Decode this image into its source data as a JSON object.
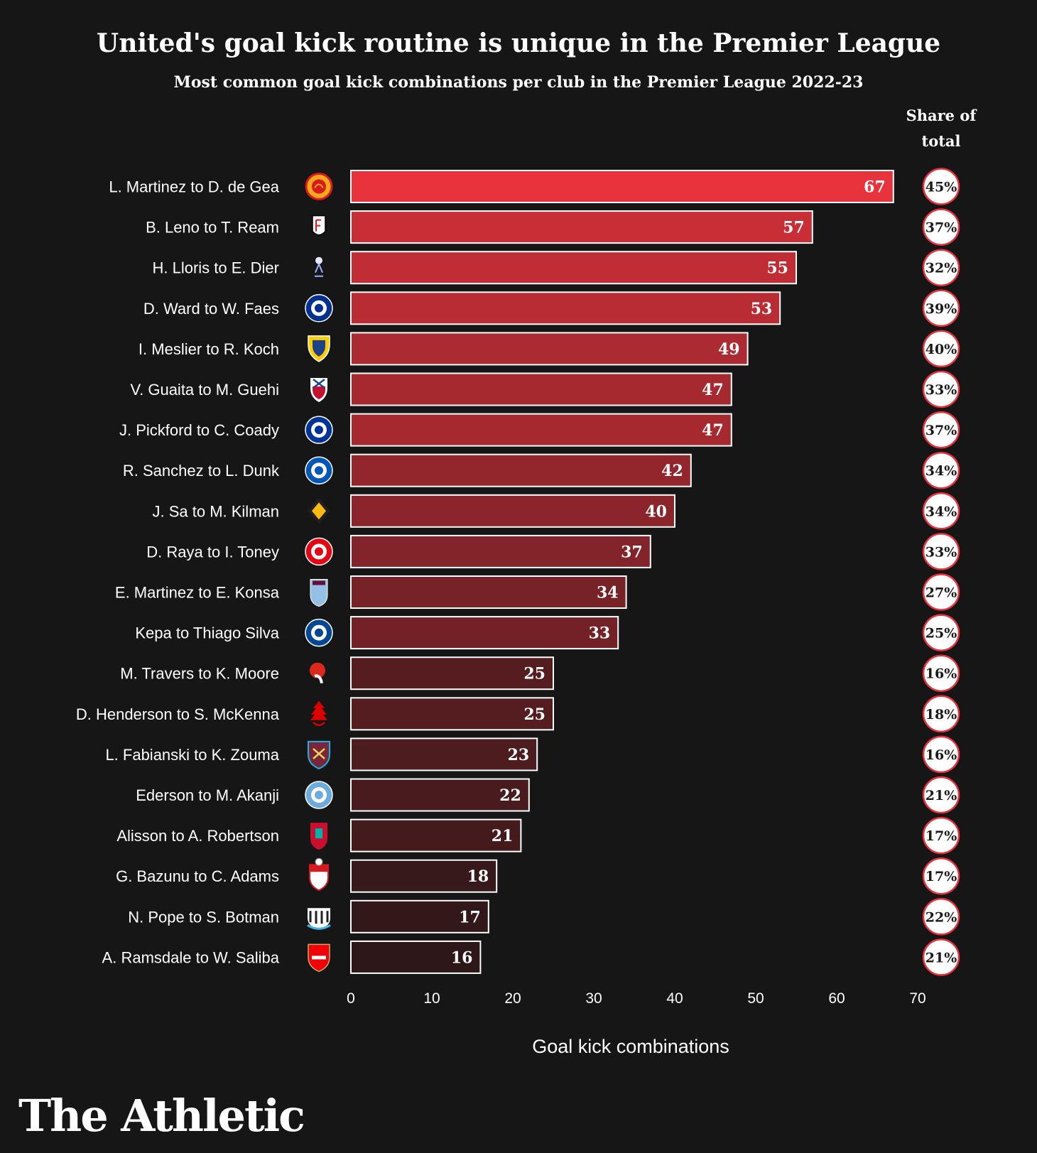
{
  "chart_data": {
    "type": "bar",
    "orientation": "horizontal",
    "title": "United's goal kick routine is unique in the Premier League",
    "subtitle": "Most common goal kick combinations per club in the Premier League 2022-23",
    "share_header": [
      "Share of",
      "total"
    ],
    "xlabel": "Goal kick combinations",
    "ylabel": "",
    "xlim": [
      0,
      70
    ],
    "xticks": [
      0,
      10,
      20,
      30,
      40,
      50,
      60,
      70
    ],
    "grid": false,
    "legend": "none",
    "categories": [
      "L. Martinez to D. de Gea",
      "B. Leno to T. Ream",
      "H. Lloris to E. Dier",
      "D. Ward to W. Faes",
      "I. Meslier to R. Koch",
      "V. Guaita to M. Guehi",
      "J. Pickford to C. Coady",
      "R. Sanchez to L. Dunk",
      "J. Sa to M. Kilman",
      "D. Raya to I. Toney",
      "E. Martinez to E. Konsa",
      "Kepa to Thiago Silva",
      "M. Travers to K. Moore",
      "D. Henderson to S. McKenna",
      "L. Fabianski to K. Zouma",
      "Ederson to M. Akanji",
      "Alisson to A. Robertson",
      "G. Bazunu to C. Adams",
      "N. Pope to S. Botman",
      "A. Ramsdale to W. Saliba"
    ],
    "values": [
      67,
      57,
      55,
      53,
      49,
      47,
      47,
      42,
      40,
      37,
      34,
      33,
      25,
      25,
      23,
      22,
      21,
      18,
      17,
      16
    ],
    "share_of_total": [
      "45%",
      "37%",
      "32%",
      "39%",
      "40%",
      "33%",
      "37%",
      "34%",
      "34%",
      "33%",
      "27%",
      "25%",
      "16%",
      "18%",
      "16%",
      "21%",
      "17%",
      "17%",
      "22%",
      "21%"
    ],
    "club_badges": [
      {
        "icon": "man-utd-badge-icon",
        "color": "#d71920"
      },
      {
        "icon": "fulham-badge-icon",
        "color": "#ffffff"
      },
      {
        "icon": "tottenham-badge-icon",
        "color": "#132257"
      },
      {
        "icon": "leicester-badge-icon",
        "color": "#003090"
      },
      {
        "icon": "leeds-badge-icon",
        "color": "#ffcd00"
      },
      {
        "icon": "crystal-palace-badge-icon",
        "color": "#1b458f"
      },
      {
        "icon": "everton-badge-icon",
        "color": "#003399"
      },
      {
        "icon": "brighton-badge-icon",
        "color": "#0057b8"
      },
      {
        "icon": "wolves-badge-icon",
        "color": "#fdb913"
      },
      {
        "icon": "brentford-badge-icon",
        "color": "#e30613"
      },
      {
        "icon": "aston-villa-badge-icon",
        "color": "#95bfe5"
      },
      {
        "icon": "chelsea-badge-icon",
        "color": "#034694"
      },
      {
        "icon": "bournemouth-badge-icon",
        "color": "#da291c"
      },
      {
        "icon": "nottingham-forest-badge-icon",
        "color": "#dd0000"
      },
      {
        "icon": "west-ham-badge-icon",
        "color": "#7a263a"
      },
      {
        "icon": "man-city-badge-icon",
        "color": "#6cabdd"
      },
      {
        "icon": "liverpool-badge-icon",
        "color": "#c8102e"
      },
      {
        "icon": "southampton-badge-icon",
        "color": "#d71920"
      },
      {
        "icon": "newcastle-badge-icon",
        "color": "#241f20"
      },
      {
        "icon": "arsenal-badge-icon",
        "color": "#ef0107"
      }
    ],
    "colors": {
      "background": "#161616",
      "bar_high": "#e8333c",
      "bar_low": "#2e1719",
      "bar_border": "#ffffff",
      "share_circle_fill": "#ffffff",
      "share_circle_stroke": "#e8333c"
    }
  },
  "brand": "The Athletic"
}
